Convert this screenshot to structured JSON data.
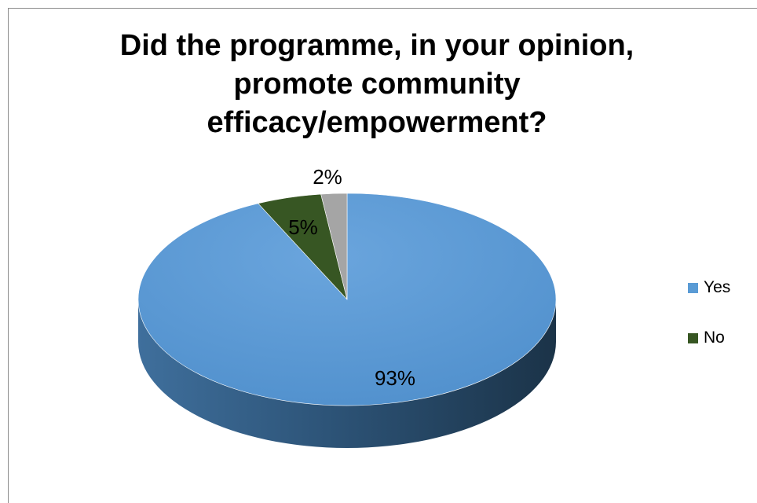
{
  "chart_data": {
    "type": "pie",
    "title_lines": [
      "Did the programme, in your opinion,",
      "promote community",
      "efficacy/empowerment?"
    ],
    "slices": [
      {
        "label": "Yes",
        "value": 93,
        "data_label": "93%",
        "color": "#5a9bd5"
      },
      {
        "label": "No",
        "value": 5,
        "data_label": "5%",
        "color": "#375623"
      },
      {
        "label": "",
        "value": 2,
        "data_label": "2%",
        "color": "#a5a5a5"
      }
    ],
    "legend": {
      "position": "right",
      "entries": [
        {
          "label": "Yes",
          "color": "#5a9bd5"
        },
        {
          "label": "No",
          "color": "#375623"
        }
      ]
    },
    "style": "3d-pie"
  }
}
